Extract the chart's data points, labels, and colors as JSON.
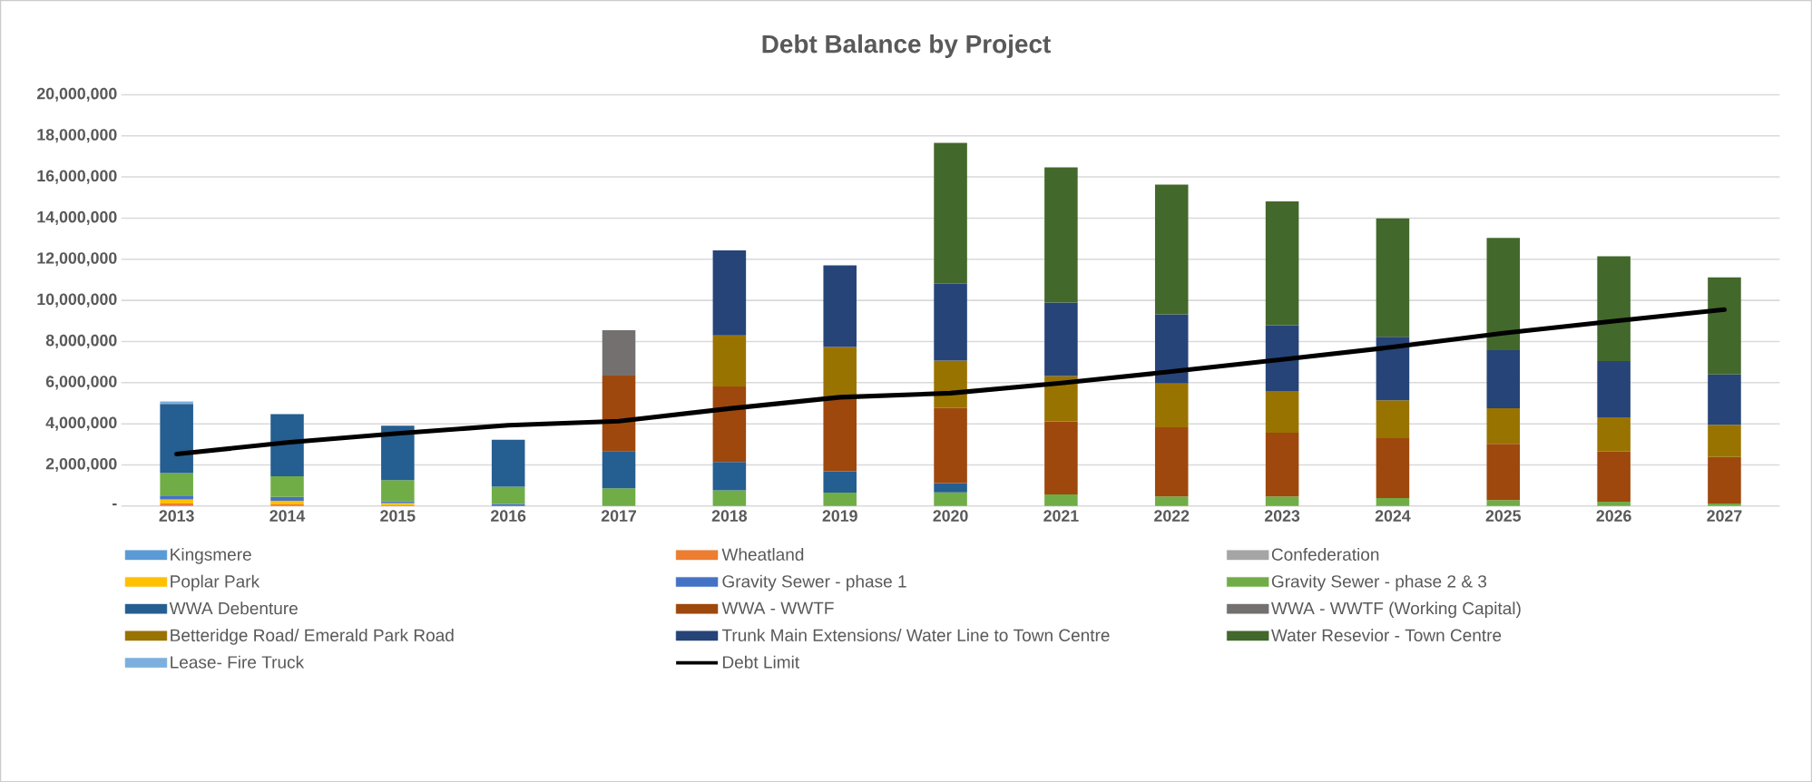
{
  "chart_data": {
    "type": "bar",
    "title": "Debt Balance by Project",
    "stacked": true,
    "grid": "y",
    "legend": "bottom",
    "categories": [
      "2013",
      "2014",
      "2015",
      "2016",
      "2017",
      "2018",
      "2019",
      "2020",
      "2021",
      "2022",
      "2023",
      "2024",
      "2025",
      "2026",
      "2027"
    ],
    "ylim": [
      0,
      20000000
    ],
    "yticks": [
      {
        "value": 0,
        "label": "-"
      },
      {
        "value": 2000000,
        "label": "2,000,000"
      },
      {
        "value": 4000000,
        "label": "4,000,000"
      },
      {
        "value": 6000000,
        "label": "6,000,000"
      },
      {
        "value": 8000000,
        "label": "8,000,000"
      },
      {
        "value": 10000000,
        "label": "10,000,000"
      },
      {
        "value": 12000000,
        "label": "12,000,000"
      },
      {
        "value": 14000000,
        "label": "14,000,000"
      },
      {
        "value": 16000000,
        "label": "16,000,000"
      },
      {
        "value": 18000000,
        "label": "18,000,000"
      },
      {
        "value": 20000000,
        "label": "20,000,000"
      }
    ],
    "series": [
      {
        "name": "Kingsmere",
        "color": "#5b9bd5",
        "values": [
          30000,
          null,
          null,
          null,
          null,
          null,
          null,
          null,
          null,
          null,
          null,
          null,
          null,
          null,
          null
        ]
      },
      {
        "name": "Wheatland",
        "color": "#ed7d31",
        "values": [
          100000,
          80000,
          50000,
          null,
          null,
          null,
          null,
          null,
          null,
          null,
          null,
          null,
          null,
          null,
          null
        ]
      },
      {
        "name": "Confederation",
        "color": "#a5a5a5",
        "values": [
          null,
          null,
          null,
          null,
          null,
          null,
          null,
          null,
          null,
          null,
          null,
          null,
          null,
          null,
          null
        ]
      },
      {
        "name": "Poplar Park",
        "color": "#ffc000",
        "values": [
          190000,
          180000,
          100000,
          null,
          null,
          null,
          null,
          null,
          null,
          null,
          null,
          null,
          null,
          null,
          null
        ]
      },
      {
        "name": "Gravity Sewer - phase 1",
        "color": "#4472c4",
        "values": [
          190000,
          190000,
          90000,
          100000,
          null,
          null,
          null,
          null,
          null,
          null,
          null,
          null,
          null,
          null,
          null
        ]
      },
      {
        "name": "Gravity Sewer - phase 2 & 3",
        "color": "#70ad47",
        "values": [
          1090000,
          1000000,
          1020000,
          840000,
          860000,
          760000,
          650000,
          660000,
          570000,
          470000,
          470000,
          390000,
          290000,
          210000,
          120000
        ]
      },
      {
        "name": "WWA Debenture",
        "color": "#255e91",
        "values": [
          3370000,
          3020000,
          2650000,
          2280000,
          1810000,
          1380000,
          1040000,
          460000,
          null,
          null,
          null,
          null,
          null,
          null,
          null
        ]
      },
      {
        "name": "WWA - WWTF",
        "color": "#9e480e",
        "values": [
          null,
          null,
          null,
          null,
          3670000,
          3670000,
          3600000,
          3650000,
          3550000,
          3360000,
          3090000,
          2910000,
          2740000,
          2440000,
          2260000
        ]
      },
      {
        "name": "WWA - WWTF (Working Capital)",
        "color": "#757070",
        "values": [
          null,
          null,
          null,
          null,
          2210000,
          null,
          null,
          null,
          null,
          null,
          null,
          null,
          null,
          null,
          null
        ]
      },
      {
        "name": "Betteridge Road/ Emerald Park Road",
        "color": "#997300",
        "values": [
          null,
          null,
          null,
          null,
          null,
          2490000,
          2440000,
          2300000,
          2200000,
          2130000,
          2030000,
          1840000,
          1730000,
          1670000,
          1570000
        ]
      },
      {
        "name": "Trunk Main Extensions/ Water Line to Town Centre",
        "color": "#264478",
        "values": [
          null,
          null,
          null,
          null,
          null,
          4130000,
          3970000,
          3740000,
          3570000,
          3360000,
          3200000,
          3090000,
          2820000,
          2730000,
          2450000
        ]
      },
      {
        "name": "Water Resevior - Town Centre",
        "color": "#43682b",
        "values": [
          null,
          null,
          null,
          null,
          null,
          null,
          null,
          6850000,
          6580000,
          6310000,
          6020000,
          5760000,
          5460000,
          5090000,
          4720000
        ]
      },
      {
        "name": "Lease- Fire Truck",
        "color": "#7cafdd",
        "values": [
          120000,
          null,
          null,
          null,
          null,
          null,
          null,
          null,
          null,
          null,
          null,
          null,
          null,
          null,
          null
        ]
      },
      {
        "name": "Debt Limit",
        "type": "line",
        "color": "#000000",
        "values": [
          2530000,
          3090000,
          3530000,
          3930000,
          4130000,
          4740000,
          5290000,
          5490000,
          5980000,
          6540000,
          7130000,
          7730000,
          8410000,
          8990000,
          9550000
        ]
      }
    ]
  }
}
